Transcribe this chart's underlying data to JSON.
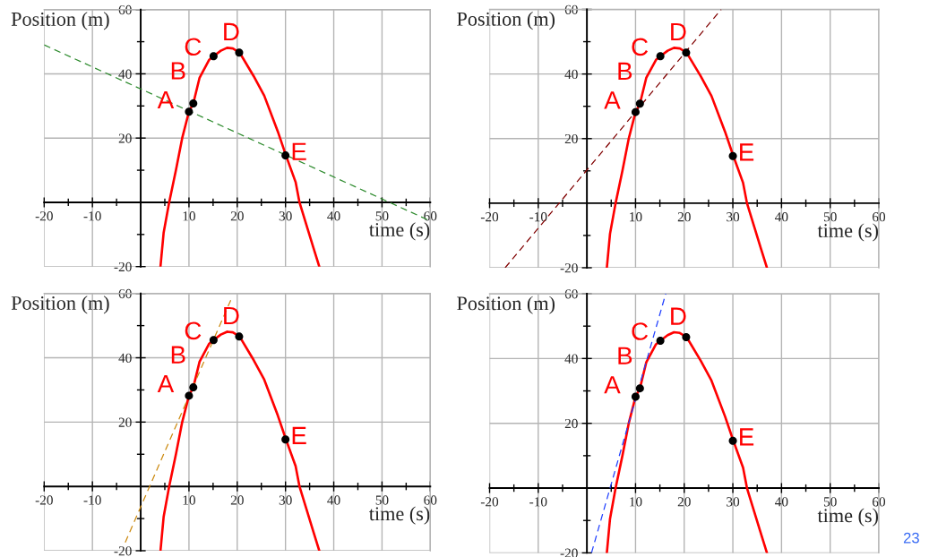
{
  "chart_data": [
    {
      "type": "line",
      "xlabel": "time (s)",
      "ylabel": "Position (m)",
      "xlim": [
        -20,
        60
      ],
      "ylim": [
        -20,
        60
      ],
      "xticks": [
        -20,
        {
          "value": -15,
          "label": null
        },
        -10,
        {
          "value": -5,
          "label": null
        },
        {
          "value": 5,
          "label": null
        },
        10,
        {
          "value": 15,
          "label": null
        },
        20,
        {
          "value": 25,
          "label": null
        },
        30,
        {
          "value": 35,
          "label": null
        },
        40,
        {
          "value": 45,
          "label": null
        },
        50,
        {
          "value": 55,
          "label": null
        },
        60
      ],
      "yticks": [
        -20,
        {
          "value": -10,
          "label": null
        },
        {
          "value": 10,
          "label": null
        },
        20,
        {
          "value": 30,
          "label": null
        },
        40,
        {
          "value": 50,
          "label": null
        },
        60
      ],
      "grid": true,
      "series": [
        {
          "color": "#ff0000",
          "line_style": "solid",
          "x": [
            4.1,
            4.75,
            5.9,
            7.3,
            8.6,
            10,
            10.9,
            12.2,
            14.2,
            15.1,
            16.6,
            17.9,
            19.1,
            20.5,
            23.4,
            25.6,
            28.4,
            30.1,
            32.1,
            32.9,
            35.8,
            37
          ],
          "values": [
            -20,
            -9.5,
            0,
            10,
            20,
            28.2,
            30.8,
            38.8,
            44.4,
            45.5,
            47.2,
            48.1,
            47.9,
            46.6,
            39.3,
            33.2,
            22.1,
            14.6,
            6.3,
            0,
            -14.2,
            -20
          ]
        },
        {
          "color": "#2e8b2e",
          "line_style": "dashed",
          "x": [
            -20,
            60
          ],
          "values": [
            49,
            -5.8
          ]
        },
        {
          "type": "scatter",
          "color": "#000000",
          "marker": "circle",
          "x": [
            10,
            10.9,
            15.1,
            20.4,
            30
          ],
          "values": [
            28.2,
            30.8,
            45.5,
            46.6,
            14.6
          ]
        }
      ],
      "annotations": [
        {
          "text": "A",
          "x": 10,
          "y": 28.2
        },
        {
          "text": "B",
          "x": 10.9,
          "y": 30.8
        },
        {
          "text": "C",
          "x": 15.1,
          "y": 45.5
        },
        {
          "text": "D",
          "x": 20.4,
          "y": 46.6
        },
        {
          "text": "E",
          "x": 30,
          "y": 14.6
        }
      ]
    },
    {
      "type": "line",
      "xlabel": "time (s)",
      "ylabel": "Position (m)",
      "xlim": [
        -20,
        60
      ],
      "ylim": [
        -20,
        60
      ],
      "xticks": [
        -20,
        {
          "value": -15,
          "label": null
        },
        -10,
        {
          "value": -5,
          "label": null
        },
        {
          "value": 5,
          "label": null
        },
        10,
        {
          "value": 15,
          "label": null
        },
        20,
        {
          "value": 25,
          "label": null
        },
        30,
        {
          "value": 35,
          "label": null
        },
        40,
        {
          "value": 45,
          "label": null
        },
        50,
        {
          "value": 55,
          "label": null
        },
        60
      ],
      "yticks": [
        -20,
        {
          "value": -10,
          "label": null
        },
        {
          "value": 10,
          "label": null
        },
        20,
        {
          "value": 30,
          "label": null
        },
        40,
        {
          "value": 50,
          "label": null
        },
        60
      ],
      "grid": true,
      "series": [
        {
          "color": "#ff0000",
          "line_style": "solid",
          "x": [
            4.1,
            4.75,
            5.9,
            7.3,
            8.6,
            10,
            10.9,
            12.2,
            14.2,
            15.1,
            16.6,
            17.9,
            19.1,
            20.5,
            23.4,
            25.6,
            28.4,
            30.1,
            32.1,
            32.9,
            35.8,
            37
          ],
          "values": [
            -20,
            -9.5,
            0,
            10,
            20,
            28.2,
            30.8,
            38.8,
            44.4,
            45.5,
            47.2,
            48.1,
            47.9,
            46.6,
            39.3,
            33.2,
            22.1,
            14.6,
            6.3,
            0,
            -14.2,
            -20
          ]
        },
        {
          "color": "#800000",
          "line_style": "dashed",
          "x": [
            -16.8,
            27.6
          ],
          "values": [
            -20,
            60
          ]
        },
        {
          "type": "scatter",
          "color": "#000000",
          "marker": "circle",
          "x": [
            10,
            10.9,
            15.1,
            20.4,
            30
          ],
          "values": [
            28.2,
            30.8,
            45.5,
            46.6,
            14.6
          ]
        }
      ],
      "annotations": [
        {
          "text": "A",
          "x": 10,
          "y": 28.2
        },
        {
          "text": "B",
          "x": 10.9,
          "y": 30.8
        },
        {
          "text": "C",
          "x": 15.1,
          "y": 45.5
        },
        {
          "text": "D",
          "x": 20.4,
          "y": 46.6
        },
        {
          "text": "E",
          "x": 30,
          "y": 14.6
        }
      ]
    },
    {
      "type": "line",
      "xlabel": "time (s)",
      "ylabel": "Position (m)",
      "xlim": [
        -20,
        60
      ],
      "ylim": [
        -20,
        60
      ],
      "xticks": [
        -20,
        {
          "value": -15,
          "label": null
        },
        -10,
        {
          "value": -5,
          "label": null
        },
        {
          "value": 5,
          "label": null
        },
        10,
        {
          "value": 15,
          "label": null
        },
        20,
        {
          "value": 25,
          "label": null
        },
        30,
        {
          "value": 35,
          "label": null
        },
        40,
        {
          "value": 45,
          "label": null
        },
        50,
        {
          "value": 55,
          "label": null
        },
        60
      ],
      "yticks": [
        -20,
        {
          "value": -10,
          "label": null
        },
        {
          "value": 10,
          "label": null
        },
        20,
        {
          "value": 30,
          "label": null
        },
        40,
        {
          "value": 50,
          "label": null
        },
        60
      ],
      "grid": true,
      "series": [
        {
          "color": "#ff0000",
          "line_style": "solid",
          "x": [
            4.1,
            4.75,
            5.9,
            7.3,
            8.6,
            10,
            10.9,
            12.2,
            14.2,
            15.1,
            16.6,
            17.9,
            19.1,
            20.5,
            23.4,
            25.6,
            28.4,
            30.1,
            32.1,
            32.9,
            35.8,
            37
          ],
          "values": [
            -20,
            -9.5,
            0,
            10,
            20,
            28.2,
            30.8,
            38.8,
            44.4,
            45.5,
            47.2,
            48.1,
            47.9,
            46.6,
            39.3,
            33.2,
            22.1,
            14.6,
            6.3,
            0,
            -14.2,
            -20
          ]
        },
        {
          "color": "#cc8a10",
          "line_style": "dashed",
          "x": [
            -3.2,
            18.8
          ],
          "values": [
            -17.4,
            58.4
          ]
        },
        {
          "type": "scatter",
          "color": "#000000",
          "marker": "circle",
          "x": [
            10,
            10.9,
            15.1,
            20.4,
            30
          ],
          "values": [
            28.2,
            30.8,
            45.5,
            46.6,
            14.6
          ]
        }
      ],
      "annotations": [
        {
          "text": "A",
          "x": 10,
          "y": 28.2
        },
        {
          "text": "B",
          "x": 10.9,
          "y": 30.8
        },
        {
          "text": "C",
          "x": 15.1,
          "y": 45.5
        },
        {
          "text": "D",
          "x": 20.4,
          "y": 46.6
        },
        {
          "text": "E",
          "x": 30,
          "y": 14.6
        }
      ]
    },
    {
      "type": "line",
      "xlabel": "time (s)",
      "ylabel": "Position (m)",
      "xlim": [
        -20,
        60
      ],
      "ylim": [
        -20,
        60
      ],
      "xticks": [
        -20,
        {
          "value": -15,
          "label": null
        },
        -10,
        {
          "value": -5,
          "label": null
        },
        {
          "value": 5,
          "label": null
        },
        10,
        {
          "value": 15,
          "label": null
        },
        20,
        {
          "value": 25,
          "label": null
        },
        30,
        {
          "value": 35,
          "label": null
        },
        40,
        {
          "value": 45,
          "label": null
        },
        50,
        {
          "value": 55,
          "label": null
        },
        60
      ],
      "yticks": [
        -20,
        {
          "value": -10,
          "label": null
        },
        {
          "value": 10,
          "label": null
        },
        20,
        {
          "value": 30,
          "label": null
        },
        40,
        {
          "value": 50,
          "label": null
        },
        60
      ],
      "grid": true,
      "series": [
        {
          "color": "#ff0000",
          "line_style": "solid",
          "x": [
            4.1,
            4.75,
            5.9,
            7.3,
            8.6,
            10,
            10.9,
            12.2,
            14.2,
            15.1,
            16.6,
            17.9,
            19.1,
            20.5,
            23.4,
            25.6,
            28.4,
            30.1,
            32.1,
            32.9,
            35.8,
            37
          ],
          "values": [
            -20,
            -9.5,
            0,
            10,
            20,
            28.2,
            30.8,
            38.8,
            44.4,
            45.5,
            47.2,
            48.1,
            47.9,
            46.6,
            39.3,
            33.2,
            22.1,
            14.6,
            6.3,
            0,
            -14.2,
            -20
          ]
        },
        {
          "color": "#1f3fff",
          "line_style": "dashed",
          "x": [
            0.95,
            16.2
          ],
          "values": [
            -20,
            60
          ]
        },
        {
          "type": "scatter",
          "color": "#000000",
          "marker": "circle",
          "x": [
            10,
            10.9,
            15.1,
            20.4,
            30
          ],
          "values": [
            28.2,
            30.8,
            45.5,
            46.6,
            14.6
          ]
        }
      ],
      "annotations": [
        {
          "text": "A",
          "x": 10,
          "y": 28.2
        },
        {
          "text": "B",
          "x": 10.9,
          "y": 30.8
        },
        {
          "text": "C",
          "x": 15.1,
          "y": 45.5
        },
        {
          "text": "D",
          "x": 20.4,
          "y": 46.6
        },
        {
          "text": "E",
          "x": 30,
          "y": 14.6
        },
        "23"
      ]
    }
  ]
}
